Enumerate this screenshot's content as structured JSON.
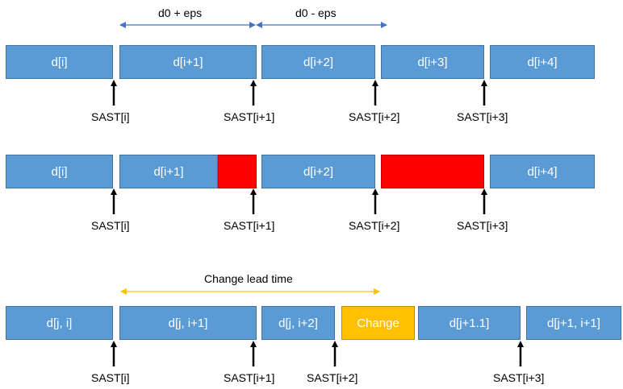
{
  "colors": {
    "segment": "#5B9BD5",
    "segment_border": "#41719C",
    "red": "#FF0000",
    "orange": "#FFC000",
    "blue_dim": "#4472C4",
    "orange_dim": "#FFC000"
  },
  "row1": {
    "dim_left": "d0 + eps",
    "dim_right": "d0 - eps",
    "boxes": [
      "d[i]",
      "d[i+1]",
      "d[i+2]",
      "d[i+3]",
      "d[i+4]"
    ],
    "markers": [
      "SAST[i]",
      "SAST[i+1]",
      "SAST[i+2]",
      "SAST[i+3]"
    ]
  },
  "row2": {
    "boxes": [
      "d[i]",
      "d[i+1]",
      "d[i+2]",
      "d[i+4]"
    ],
    "markers": [
      "SAST[i]",
      "SAST[i+1]",
      "SAST[i+2]",
      "SAST[i+3]"
    ]
  },
  "row3": {
    "dim_label": "Change lead time",
    "boxes": [
      "d[j, i]",
      "d[j, i+1]",
      "d[j, i+2]",
      "Change",
      "d[j+1.1]",
      "d[j+1, i+1]"
    ],
    "markers": [
      "SAST[i]",
      "SAST[i+1]",
      "SAST[i+2]",
      "SAST[i+3]"
    ]
  }
}
